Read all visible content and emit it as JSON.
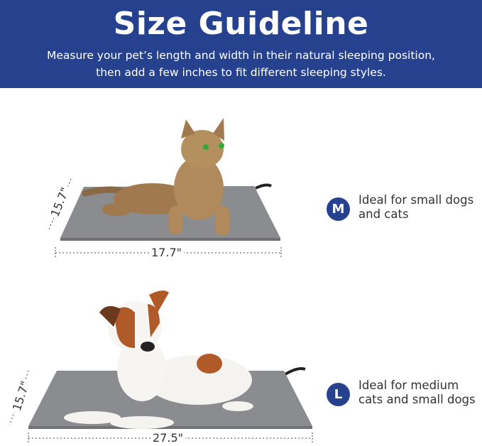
{
  "header": {
    "title": "Size Guideline",
    "subtitle_line1": "Measure your pet’s length and width in their natural sleeping position,",
    "subtitle_line2": "then add a few inches to fit different sleeping styles."
  },
  "sizes": [
    {
      "badge": "M",
      "width": "15.7\"",
      "length": "17.7\"",
      "desc_line1": "Ideal for small dogs",
      "desc_line2": "and cats",
      "animal": "cat"
    },
    {
      "badge": "L",
      "width": "15.7\"",
      "length": "27.5\"",
      "desc_line1": "Ideal for medium",
      "desc_line2": "cats and small dogs",
      "animal": "dog"
    }
  ],
  "colors": {
    "brand_blue": "#26428f",
    "mat_gray": "#8a8c8f"
  }
}
